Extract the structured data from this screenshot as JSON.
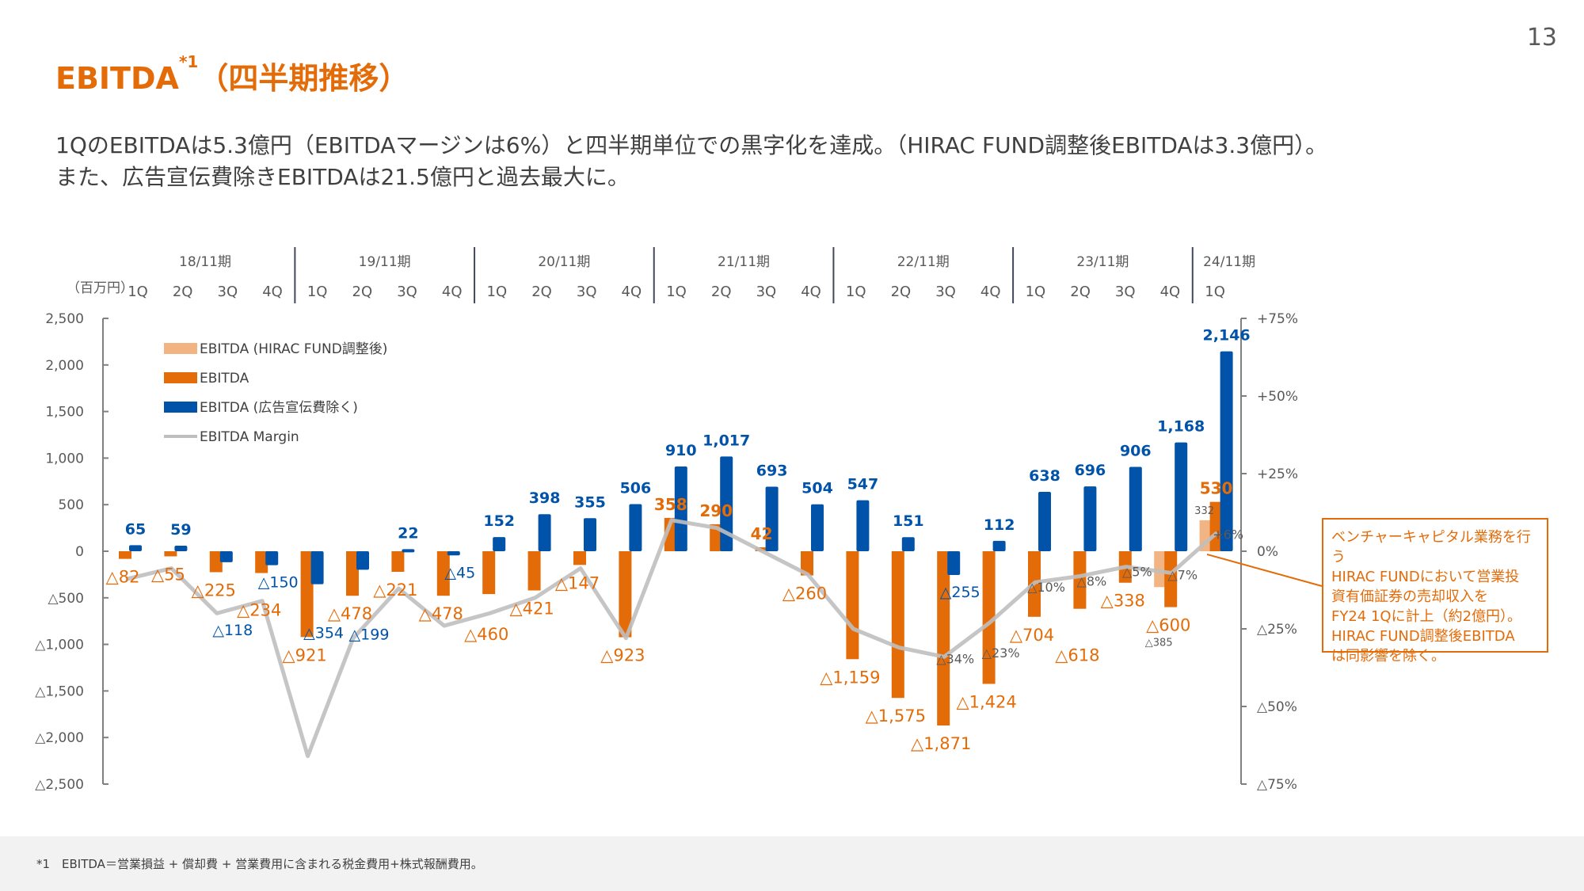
{
  "page_number": "13",
  "title": {
    "main": "EBITDA",
    "sup": "*1",
    "suffix": "（四半期推移）"
  },
  "subtitle": [
    "1QのEBITDAは5.3億円（EBITDAマージンは6%）と四半期単位での黒字化を達成。（HIRAC FUND調整後EBITDAは3.3億円）。",
    "また、広告宣伝費除きEBITDAは21.5億円と過去最大に。"
  ],
  "note_lines": [
    "ベンチャーキャピタル業務を行う",
    "HIRAC FUNDにおいて営業投",
    "資有価証券の売却収入を",
    "FY24 1Qに計上（約2億円）。",
    "HIRAC FUND調整後EBITDA",
    "は同影響を除く。"
  ],
  "footer": "*1　EBITDA＝営業損益 + 償却費 + 営業費用に含まれる税金費用+株式報酬費用。",
  "colors": {
    "accent": "#E36C09",
    "blue": "#0053A8",
    "adjusted": "#F2B482",
    "margin_line": "#BFBFBF"
  },
  "chart_data": {
    "type": "bar",
    "unit_label": "（百万円）",
    "periods": [
      {
        "label": "18/11期",
        "quarters": [
          "1Q",
          "2Q",
          "3Q",
          "4Q"
        ]
      },
      {
        "label": "19/11期",
        "quarters": [
          "1Q",
          "2Q",
          "3Q",
          "4Q"
        ]
      },
      {
        "label": "20/11期",
        "quarters": [
          "1Q",
          "2Q",
          "3Q",
          "4Q"
        ]
      },
      {
        "label": "21/11期",
        "quarters": [
          "1Q",
          "2Q",
          "3Q",
          "4Q"
        ]
      },
      {
        "label": "22/11期",
        "quarters": [
          "1Q",
          "2Q",
          "3Q",
          "4Q"
        ]
      },
      {
        "label": "23/11期",
        "quarters": [
          "1Q",
          "2Q",
          "3Q",
          "4Q"
        ]
      },
      {
        "label": "24/11期",
        "quarters": [
          "1Q"
        ]
      }
    ],
    "ylim": [
      -2500,
      2500
    ],
    "y_ticks": [
      "2,500",
      "2,000",
      "1,500",
      "1,000",
      "500",
      "0",
      "△500",
      "△1,000",
      "△1,500",
      "△2,000",
      "△2,500"
    ],
    "y2lim": [
      -75,
      75
    ],
    "y2_ticks": [
      "+75%",
      "+50%",
      "+25%",
      "0%",
      "△25%",
      "△50%",
      "△75%"
    ],
    "legend_position": "top-left",
    "series": [
      {
        "name": "EBITDA (HIRAC FUND調整後)",
        "type": "bar",
        "values": [
          null,
          null,
          null,
          null,
          null,
          null,
          null,
          null,
          null,
          null,
          null,
          null,
          null,
          null,
          null,
          null,
          null,
          null,
          null,
          null,
          null,
          null,
          null,
          -385,
          332
        ]
      },
      {
        "name": "EBITDA",
        "type": "bar",
        "values": [
          -82,
          -55,
          -225,
          -234,
          -921,
          -478,
          -221,
          -478,
          -460,
          -421,
          -147,
          -923,
          358,
          290,
          42,
          -260,
          -1159,
          -1575,
          -1871,
          -1424,
          -704,
          -618,
          -338,
          -600,
          530
        ]
      },
      {
        "name": "EBITDA (広告宣伝費除く)",
        "type": "bar",
        "values": [
          65,
          59,
          -118,
          -150,
          -354,
          -199,
          22,
          -45,
          152,
          398,
          355,
          506,
          910,
          1017,
          693,
          504,
          547,
          151,
          -255,
          112,
          638,
          696,
          906,
          1168,
          2146
        ]
      },
      {
        "name": "EBITDA Margin",
        "type": "line",
        "axis": "right",
        "values": [
          -9,
          -5.5,
          -20,
          -16,
          -66,
          -28,
          -12,
          -24,
          -20,
          -15,
          -5.5,
          -28,
          10,
          7.5,
          0,
          -7.5,
          -25,
          -31,
          -34,
          -23,
          -10,
          -8,
          -5,
          -7,
          6
        ],
        "labels": [
          null,
          null,
          null,
          null,
          null,
          null,
          null,
          null,
          null,
          null,
          null,
          null,
          null,
          null,
          null,
          null,
          null,
          null,
          "△34%",
          "△23%",
          "△10%",
          "△8%",
          "△5%",
          "△7%",
          "+6%"
        ]
      }
    ]
  }
}
